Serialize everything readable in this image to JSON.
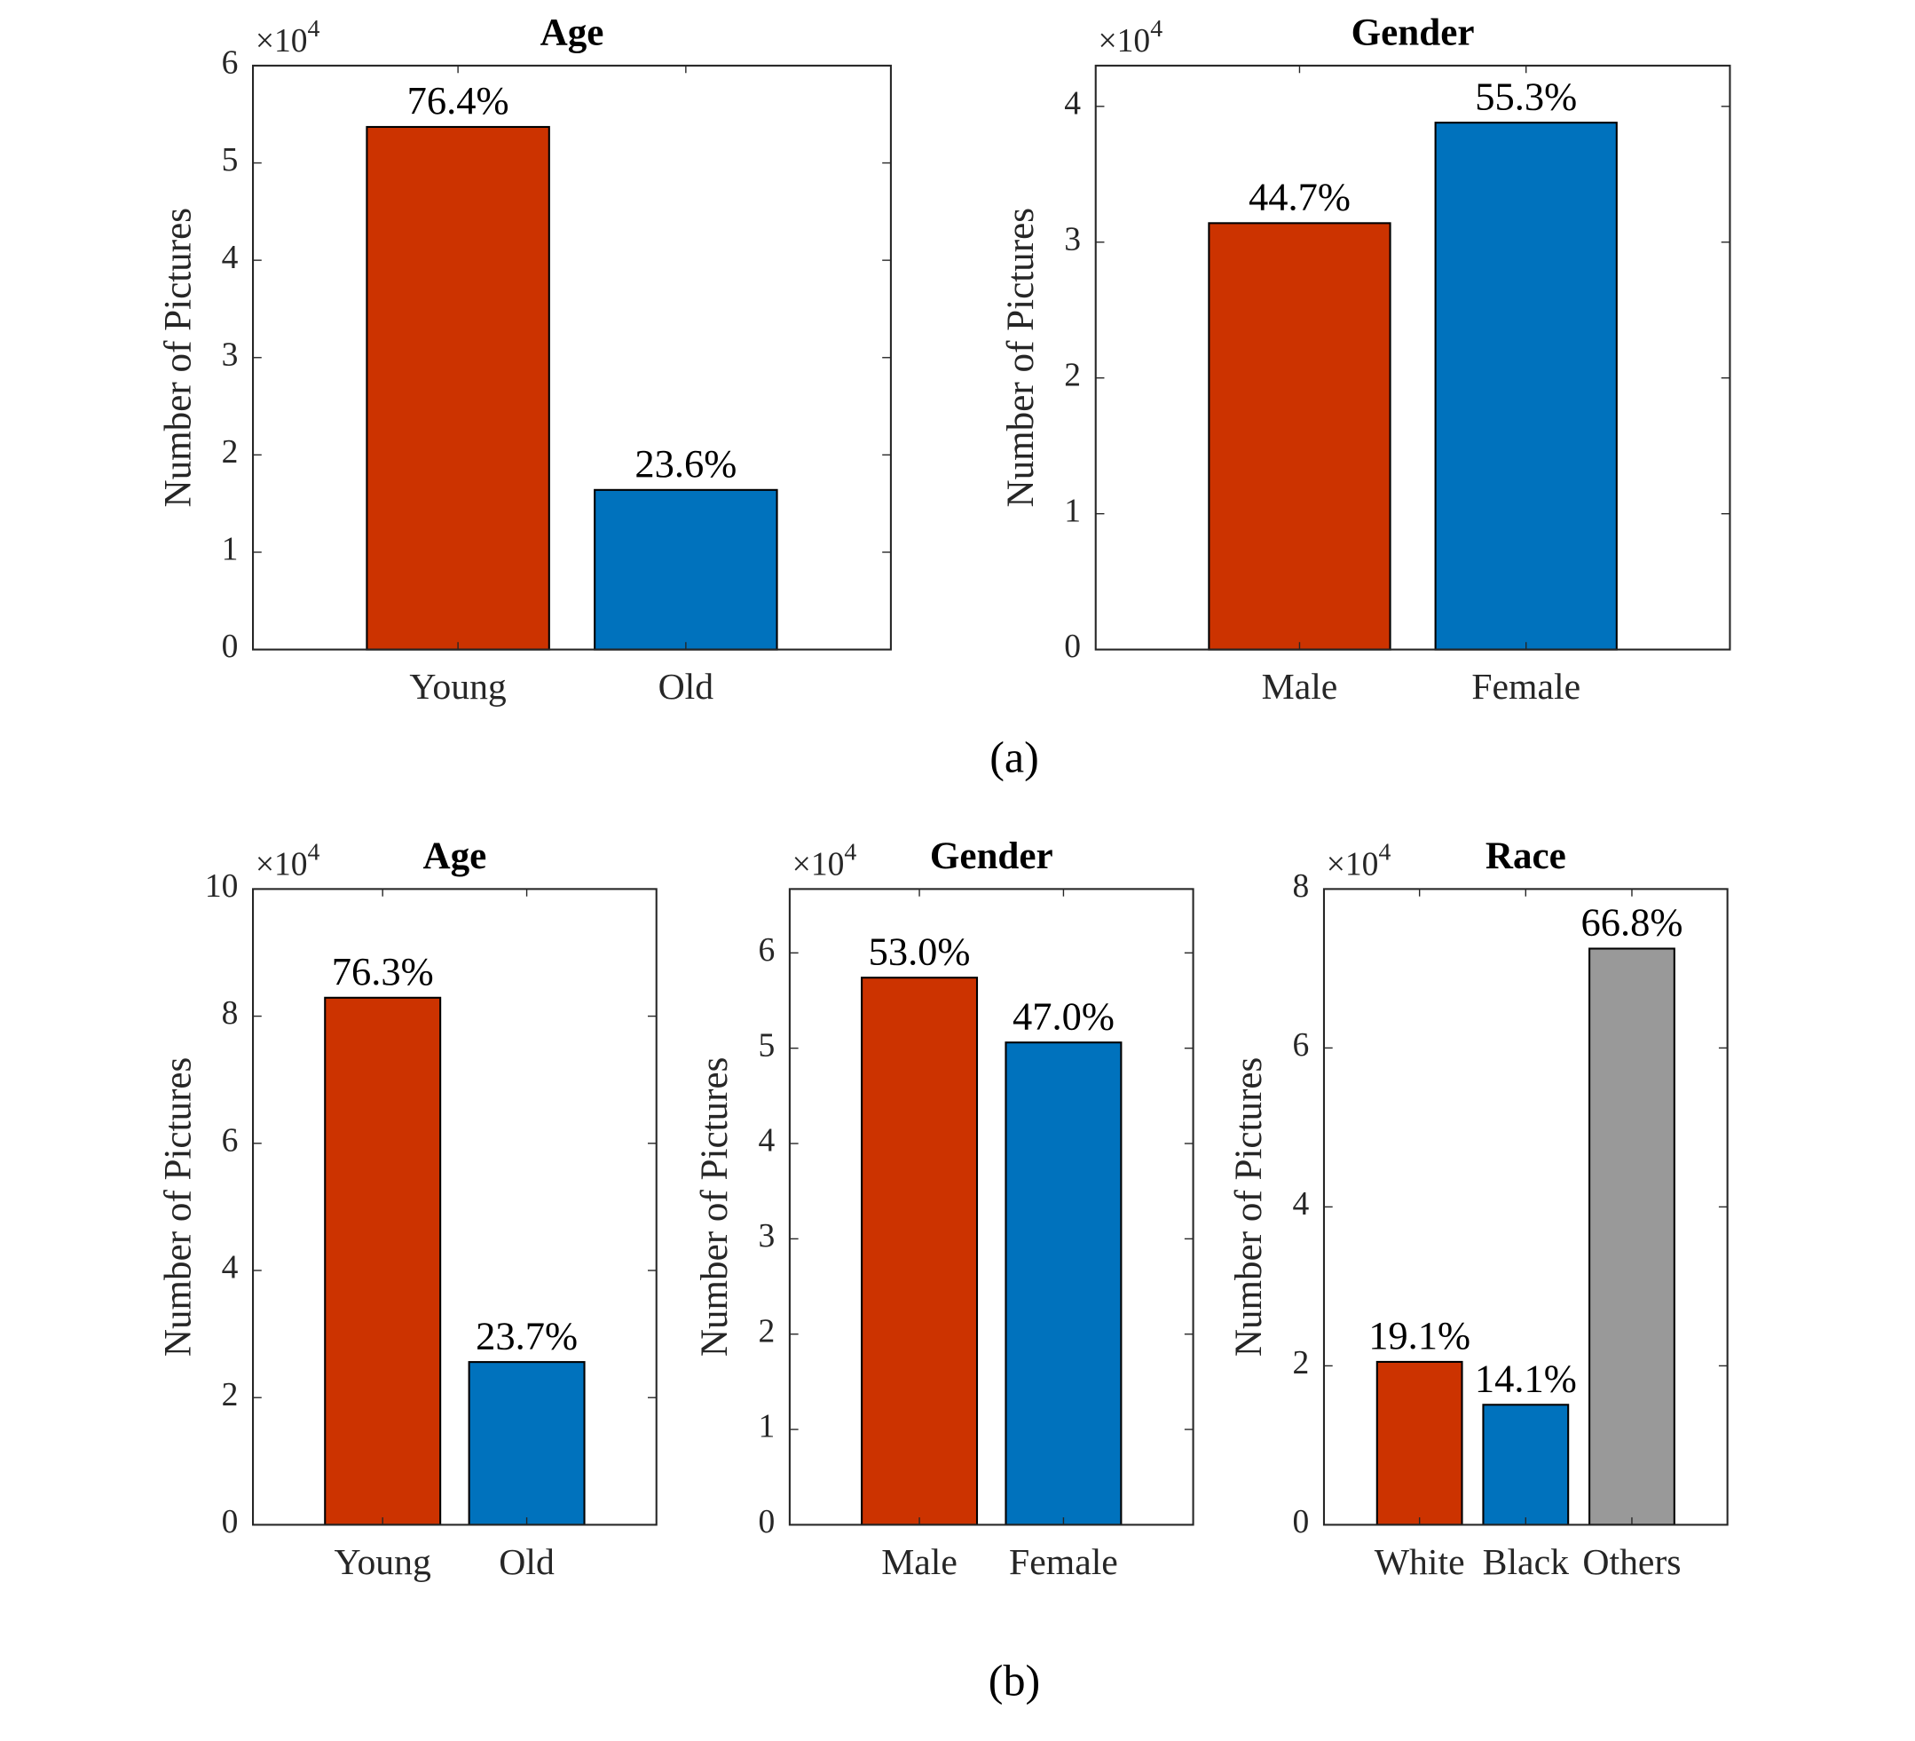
{
  "captions": [
    "(a)",
    "(b)"
  ],
  "chart_data": [
    {
      "type": "bar",
      "title": "Age",
      "y_label": "Number of Pictures",
      "y_multiplier": "×10",
      "y_exponent": "4",
      "categories": [
        "Young",
        "Old"
      ],
      "values": [
        5.37,
        1.64
      ],
      "bar_labels": [
        "76.4%",
        "23.6%"
      ],
      "colors": [
        "#cc3300",
        "#0072bd"
      ],
      "ylim": [
        0,
        6
      ],
      "yticks": [
        0,
        1,
        2,
        3,
        4,
        5,
        6
      ]
    },
    {
      "type": "bar",
      "title": "Gender",
      "y_label": "Number of Pictures",
      "y_multiplier": "×10",
      "y_exponent": "4",
      "categories": [
        "Male",
        "Female"
      ],
      "values": [
        3.14,
        3.88
      ],
      "bar_labels": [
        "44.7%",
        "55.3%"
      ],
      "colors": [
        "#cc3300",
        "#0072bd"
      ],
      "ylim": [
        0,
        4.3
      ],
      "yticks": [
        0,
        1,
        2,
        3,
        4
      ]
    },
    {
      "type": "bar",
      "title": "Age",
      "y_label": "Number of Pictures",
      "y_multiplier": "×10",
      "y_exponent": "4",
      "categories": [
        "Young",
        "Old"
      ],
      "values": [
        8.29,
        2.56
      ],
      "bar_labels": [
        "76.3%",
        "23.7%"
      ],
      "colors": [
        "#cc3300",
        "#0072bd"
      ],
      "ylim": [
        0,
        10
      ],
      "yticks": [
        0,
        2,
        4,
        6,
        8,
        10
      ]
    },
    {
      "type": "bar",
      "title": "Gender",
      "y_label": "Number of Pictures",
      "y_multiplier": "×10",
      "y_exponent": "4",
      "categories": [
        "Male",
        "Female"
      ],
      "values": [
        5.74,
        5.06
      ],
      "bar_labels": [
        "53.0%",
        "47.0%"
      ],
      "colors": [
        "#cc3300",
        "#0072bd"
      ],
      "ylim": [
        0,
        6.67
      ],
      "yticks": [
        0,
        1,
        2,
        3,
        4,
        5,
        6
      ]
    },
    {
      "type": "bar",
      "title": "Race",
      "y_label": "Number of Pictures",
      "y_multiplier": "×10",
      "y_exponent": "4",
      "categories": [
        "White",
        "Black",
        "Others"
      ],
      "values": [
        2.05,
        1.51,
        7.25
      ],
      "bar_labels": [
        "19.1%",
        "14.1%",
        "66.8%"
      ],
      "colors": [
        "#cc3300",
        "#0072bd",
        "#999999"
      ],
      "ylim": [
        0,
        8
      ],
      "yticks": [
        0,
        2,
        4,
        6,
        8
      ]
    }
  ]
}
